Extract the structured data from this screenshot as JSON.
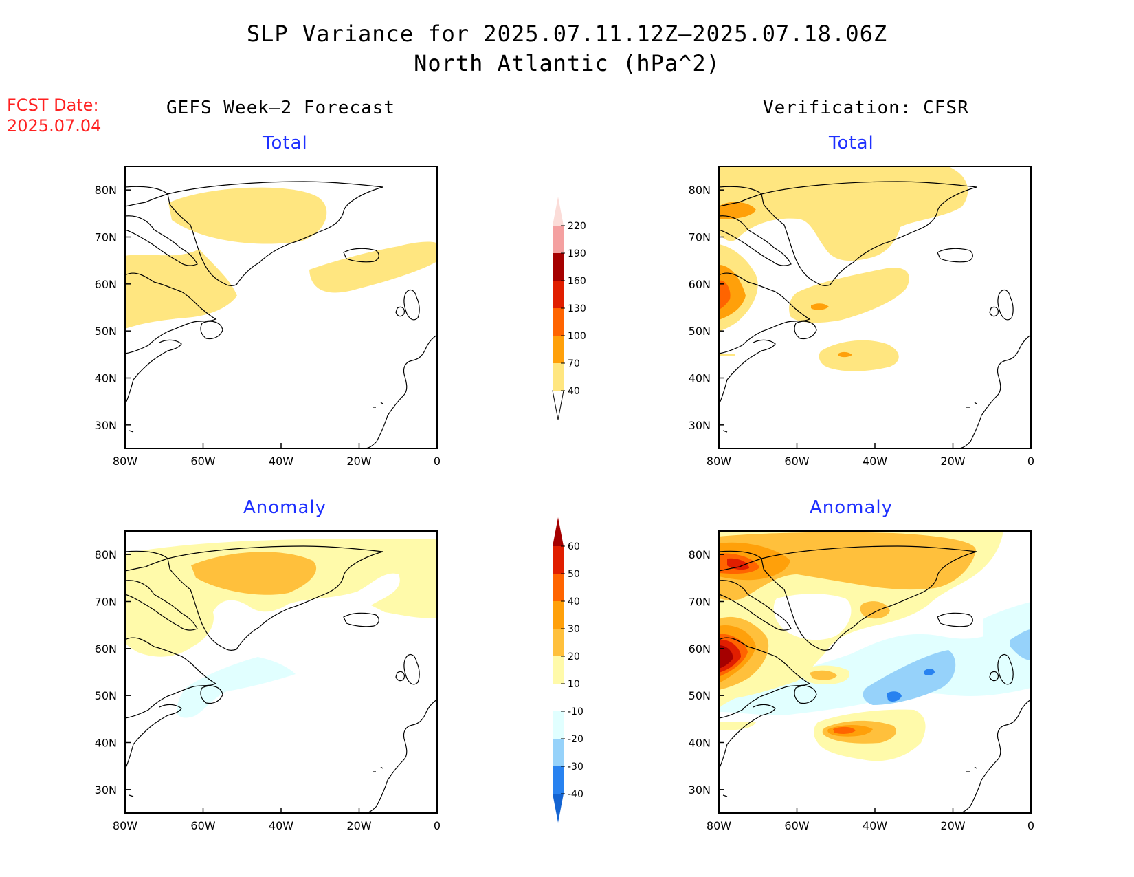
{
  "main_title": "SLP Variance for 2025.07.11.12Z–2025.07.18.06Z",
  "sub_title": "North Atlantic (hPa^2)",
  "fcst_date_label": "FCST Date:",
  "fcst_date_value": "2025.07.04",
  "columns": {
    "left": "GEFS Week–2 Forecast",
    "right": "Verification: CFSR"
  },
  "panel_titles": {
    "tl": "Total",
    "tr": "Total",
    "bl": "Anomaly",
    "br": "Anomaly"
  },
  "lat_labels": [
    "80N",
    "70N",
    "60N",
    "50N",
    "40N",
    "30N"
  ],
  "lon_labels": [
    "80W",
    "60W",
    "40W",
    "20W",
    "0"
  ],
  "total_colorbar": {
    "levels": [
      "40",
      "70",
      "100",
      "130",
      "160",
      "190",
      "220"
    ],
    "colors": [
      "#ffe680",
      "#ffa00a",
      "#ff6400",
      "#e01e00",
      "#a50000",
      "#f4a0a0",
      "#fbdcd8"
    ]
  },
  "anomaly_colorbar": {
    "levels": [
      "-40",
      "-30",
      "-20",
      "-10",
      "10",
      "20",
      "30",
      "40",
      "50",
      "60"
    ],
    "colors": [
      "#1464d2",
      "#2882f0",
      "#96d2fa",
      "#e1ffff",
      "#ffffff",
      "#fffaaa",
      "#ffc03c",
      "#ffa00a",
      "#ff6400",
      "#e01e00",
      "#a50000"
    ]
  }
}
